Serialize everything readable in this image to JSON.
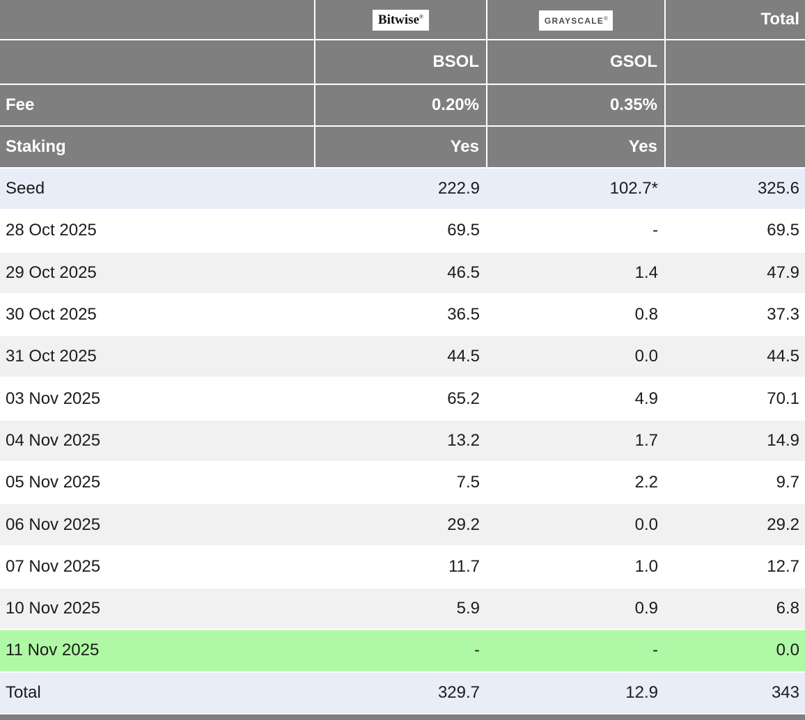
{
  "colors": {
    "header_bg": "#7F7F7F",
    "grid_line": "#FFFFFF",
    "row_white": "#FFFFFF",
    "row_gray": "#F1F1F1",
    "row_blue": "#E8EDF8",
    "row_green": "#AFF8A5",
    "header_text": "#FFFFFF",
    "body_text": "#1B1B1B"
  },
  "header": {
    "bitwise": {
      "text": "Bitwise",
      "mark": "®"
    },
    "grayscale": {
      "text": "GRAYSCALE",
      "mark": "®"
    },
    "total_label": "Total",
    "tickers": [
      "BSOL",
      "GSOL"
    ],
    "fee_label": "Fee",
    "fees": [
      "0.20%",
      "0.35%"
    ],
    "staking_label": "Staking",
    "staking": [
      "Yes",
      "Yes"
    ]
  },
  "rows": [
    {
      "label": "Seed",
      "bsol": "222.9",
      "gsol": "102.7*",
      "total": "325.6",
      "style": "blue"
    },
    {
      "label": "28 Oct 2025",
      "bsol": "69.5",
      "gsol": "-",
      "total": "69.5",
      "style": "white"
    },
    {
      "label": "29 Oct 2025",
      "bsol": "46.5",
      "gsol": "1.4",
      "total": "47.9",
      "style": "gray"
    },
    {
      "label": "30 Oct 2025",
      "bsol": "36.5",
      "gsol": "0.8",
      "total": "37.3",
      "style": "white"
    },
    {
      "label": "31 Oct 2025",
      "bsol": "44.5",
      "gsol": "0.0",
      "total": "44.5",
      "style": "gray"
    },
    {
      "label": "03 Nov 2025",
      "bsol": "65.2",
      "gsol": "4.9",
      "total": "70.1",
      "style": "white"
    },
    {
      "label": "04 Nov 2025",
      "bsol": "13.2",
      "gsol": "1.7",
      "total": "14.9",
      "style": "gray"
    },
    {
      "label": "05 Nov 2025",
      "bsol": "7.5",
      "gsol": "2.2",
      "total": "9.7",
      "style": "white"
    },
    {
      "label": "06 Nov 2025",
      "bsol": "29.2",
      "gsol": "0.0",
      "total": "29.2",
      "style": "gray"
    },
    {
      "label": "07 Nov 2025",
      "bsol": "11.7",
      "gsol": "1.0",
      "total": "12.7",
      "style": "white"
    },
    {
      "label": "10 Nov 2025",
      "bsol": "5.9",
      "gsol": "0.9",
      "total": "6.8",
      "style": "gray"
    },
    {
      "label": "11 Nov 2025",
      "bsol": "-",
      "gsol": "-",
      "total": "0.0",
      "style": "green"
    },
    {
      "label": "Total",
      "bsol": "329.7",
      "gsol": "12.9",
      "total": "343",
      "style": "blue"
    }
  ]
}
